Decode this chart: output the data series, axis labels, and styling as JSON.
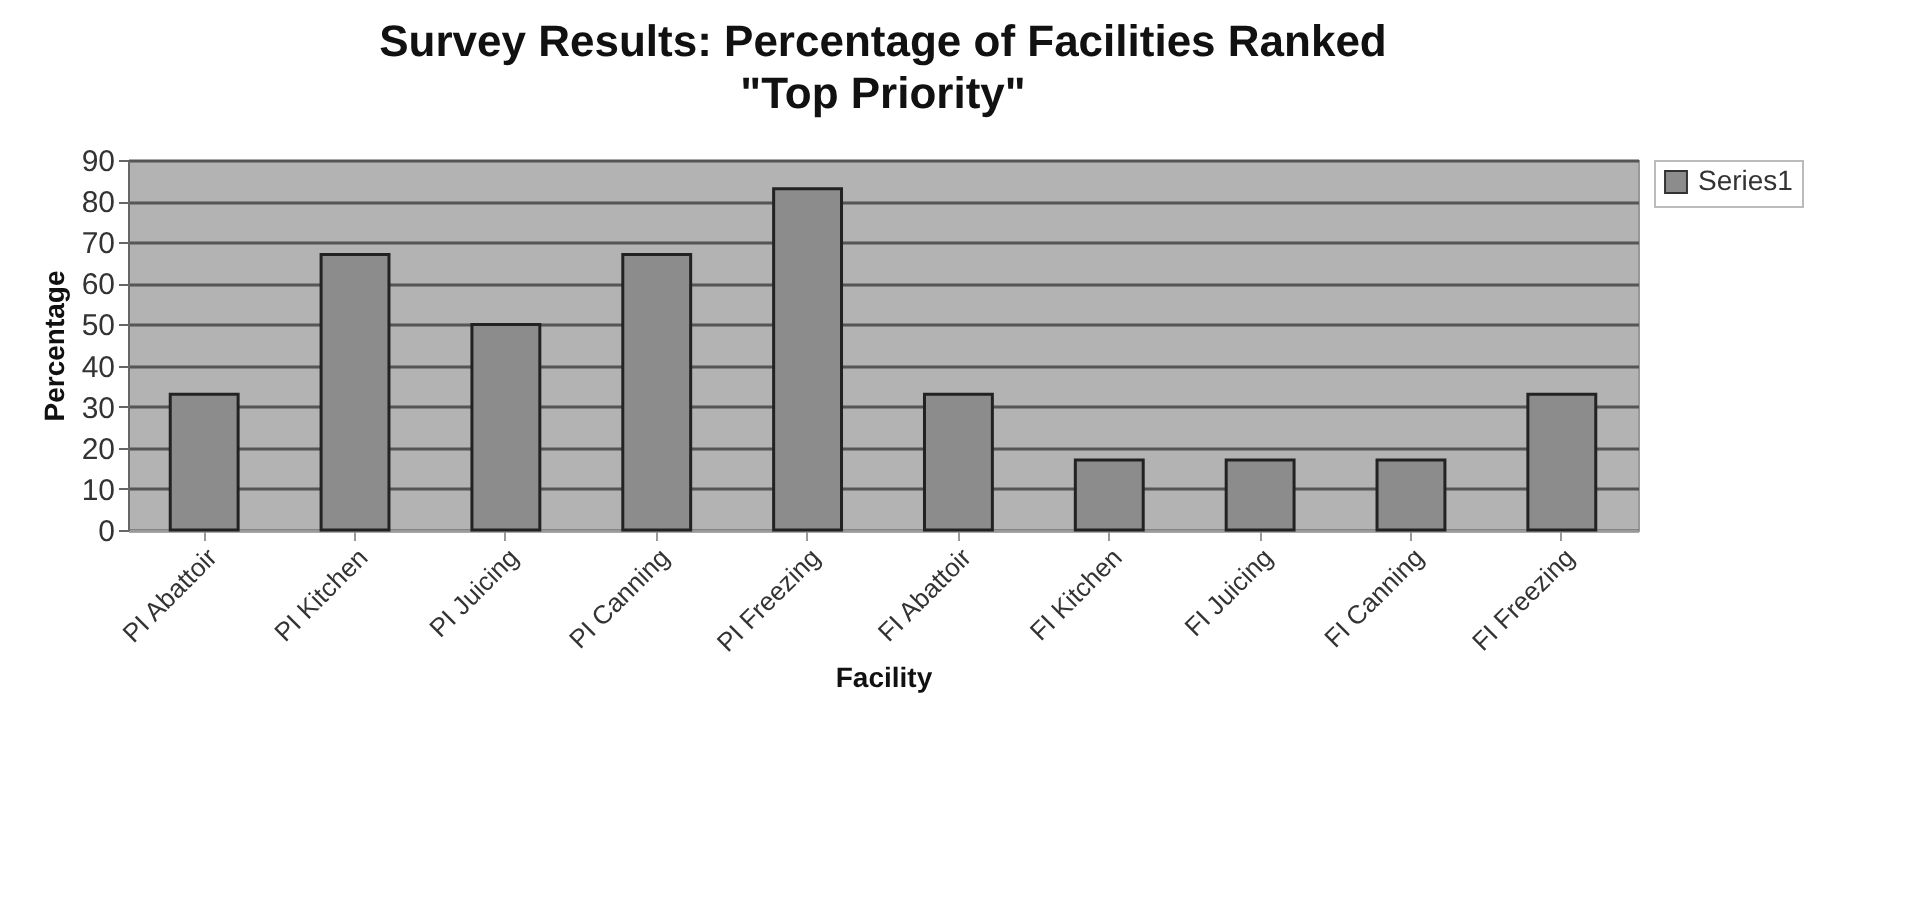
{
  "chart_data": {
    "type": "bar",
    "title": "Survey Results:  Percentage of Facilities Ranked\n\"Top Priority\"",
    "xlabel": "Facility",
    "ylabel": "Percentage",
    "categories": [
      "PI Abattoir",
      "PI Kitchen",
      "PI Juicing",
      "PI Canning",
      "PI Freezing",
      "FI Abattoir",
      "FI Kitchen",
      "FI Juicing",
      "FI Canning",
      "FI Freezing"
    ],
    "series": [
      {
        "name": "Series1",
        "color": "#8c8c8c",
        "values": [
          33,
          67,
          50,
          67,
          83,
          33,
          17,
          17,
          17,
          33
        ]
      }
    ],
    "ylim": [
      0,
      90
    ],
    "yticks": [
      0,
      10,
      20,
      30,
      40,
      50,
      60,
      70,
      80,
      90
    ],
    "grid": "y",
    "legend": "right"
  }
}
